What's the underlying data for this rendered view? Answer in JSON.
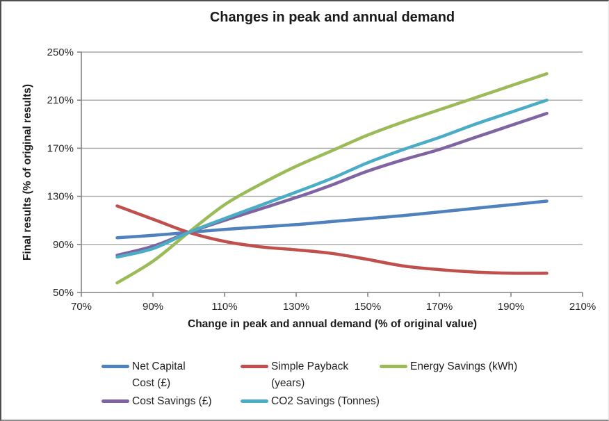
{
  "chart_data": {
    "type": "line",
    "title": "Changes in peak and annual demand",
    "xlabel": "Change in peak and annual demand (% of original value)",
    "ylabel": "Final results (% of original results)",
    "x": [
      80,
      90,
      100,
      110,
      120,
      130,
      140,
      150,
      160,
      170,
      180,
      190,
      200
    ],
    "xlim": [
      70,
      210
    ],
    "ylim": [
      50,
      250
    ],
    "x_tick_values": [
      70,
      90,
      110,
      130,
      150,
      170,
      190,
      210
    ],
    "x_tick_labels": [
      "70%",
      "90%",
      "110%",
      "130%",
      "150%",
      "170%",
      "190%",
      "210%"
    ],
    "y_tick_values": [
      50,
      90,
      130,
      170,
      210,
      250
    ],
    "y_tick_labels": [
      "50%",
      "90%",
      "130%",
      "170%",
      "210%",
      "250%"
    ],
    "grid": "horizontal",
    "smoothed_lines": true,
    "legend_position": "bottom",
    "series": [
      {
        "name": "Net Capital Cost (£)",
        "legend_lines": [
          "Net Capital",
          "Cost (£)"
        ],
        "color": "#4F81BD",
        "values": [
          95.5,
          97.5,
          100,
          102.5,
          104.5,
          106.5,
          109,
          111.5,
          114,
          117,
          120,
          123,
          126
        ]
      },
      {
        "name": "Simple Payback (years)",
        "legend_lines": [
          "Simple Payback",
          "(years)"
        ],
        "color": "#C0504D",
        "values": [
          122,
          111,
          100,
          92.5,
          88,
          85.5,
          82.5,
          77.5,
          72,
          69,
          67,
          66,
          66
        ]
      },
      {
        "name": "Energy Savings (kWh)",
        "legend_lines": [
          "Energy Savings (kWh)"
        ],
        "color": "#9BBB59",
        "values": [
          58,
          76,
          100,
          123,
          140,
          155,
          168,
          181,
          192,
          202,
          212,
          222,
          232
        ]
      },
      {
        "name": "Cost Savings (£)",
        "legend_lines": [
          "Cost Savings (£)"
        ],
        "color": "#8064A2",
        "values": [
          81,
          88.5,
          100,
          110,
          119.5,
          129,
          139.5,
          151,
          160.5,
          169,
          179,
          189,
          199
        ]
      },
      {
        "name": "CO2 Savings (Tonnes)",
        "legend_lines": [
          "CO2 Savings (Tonnes)"
        ],
        "color": "#4BACC6",
        "values": [
          79.5,
          86.5,
          100,
          111.5,
          122.5,
          133.5,
          145,
          158,
          169,
          179,
          190,
          200,
          210
        ]
      }
    ],
    "style_colors": {
      "gridline": "#A6A6A6",
      "axis_line": "#808080",
      "tick_text": "#262626"
    }
  }
}
